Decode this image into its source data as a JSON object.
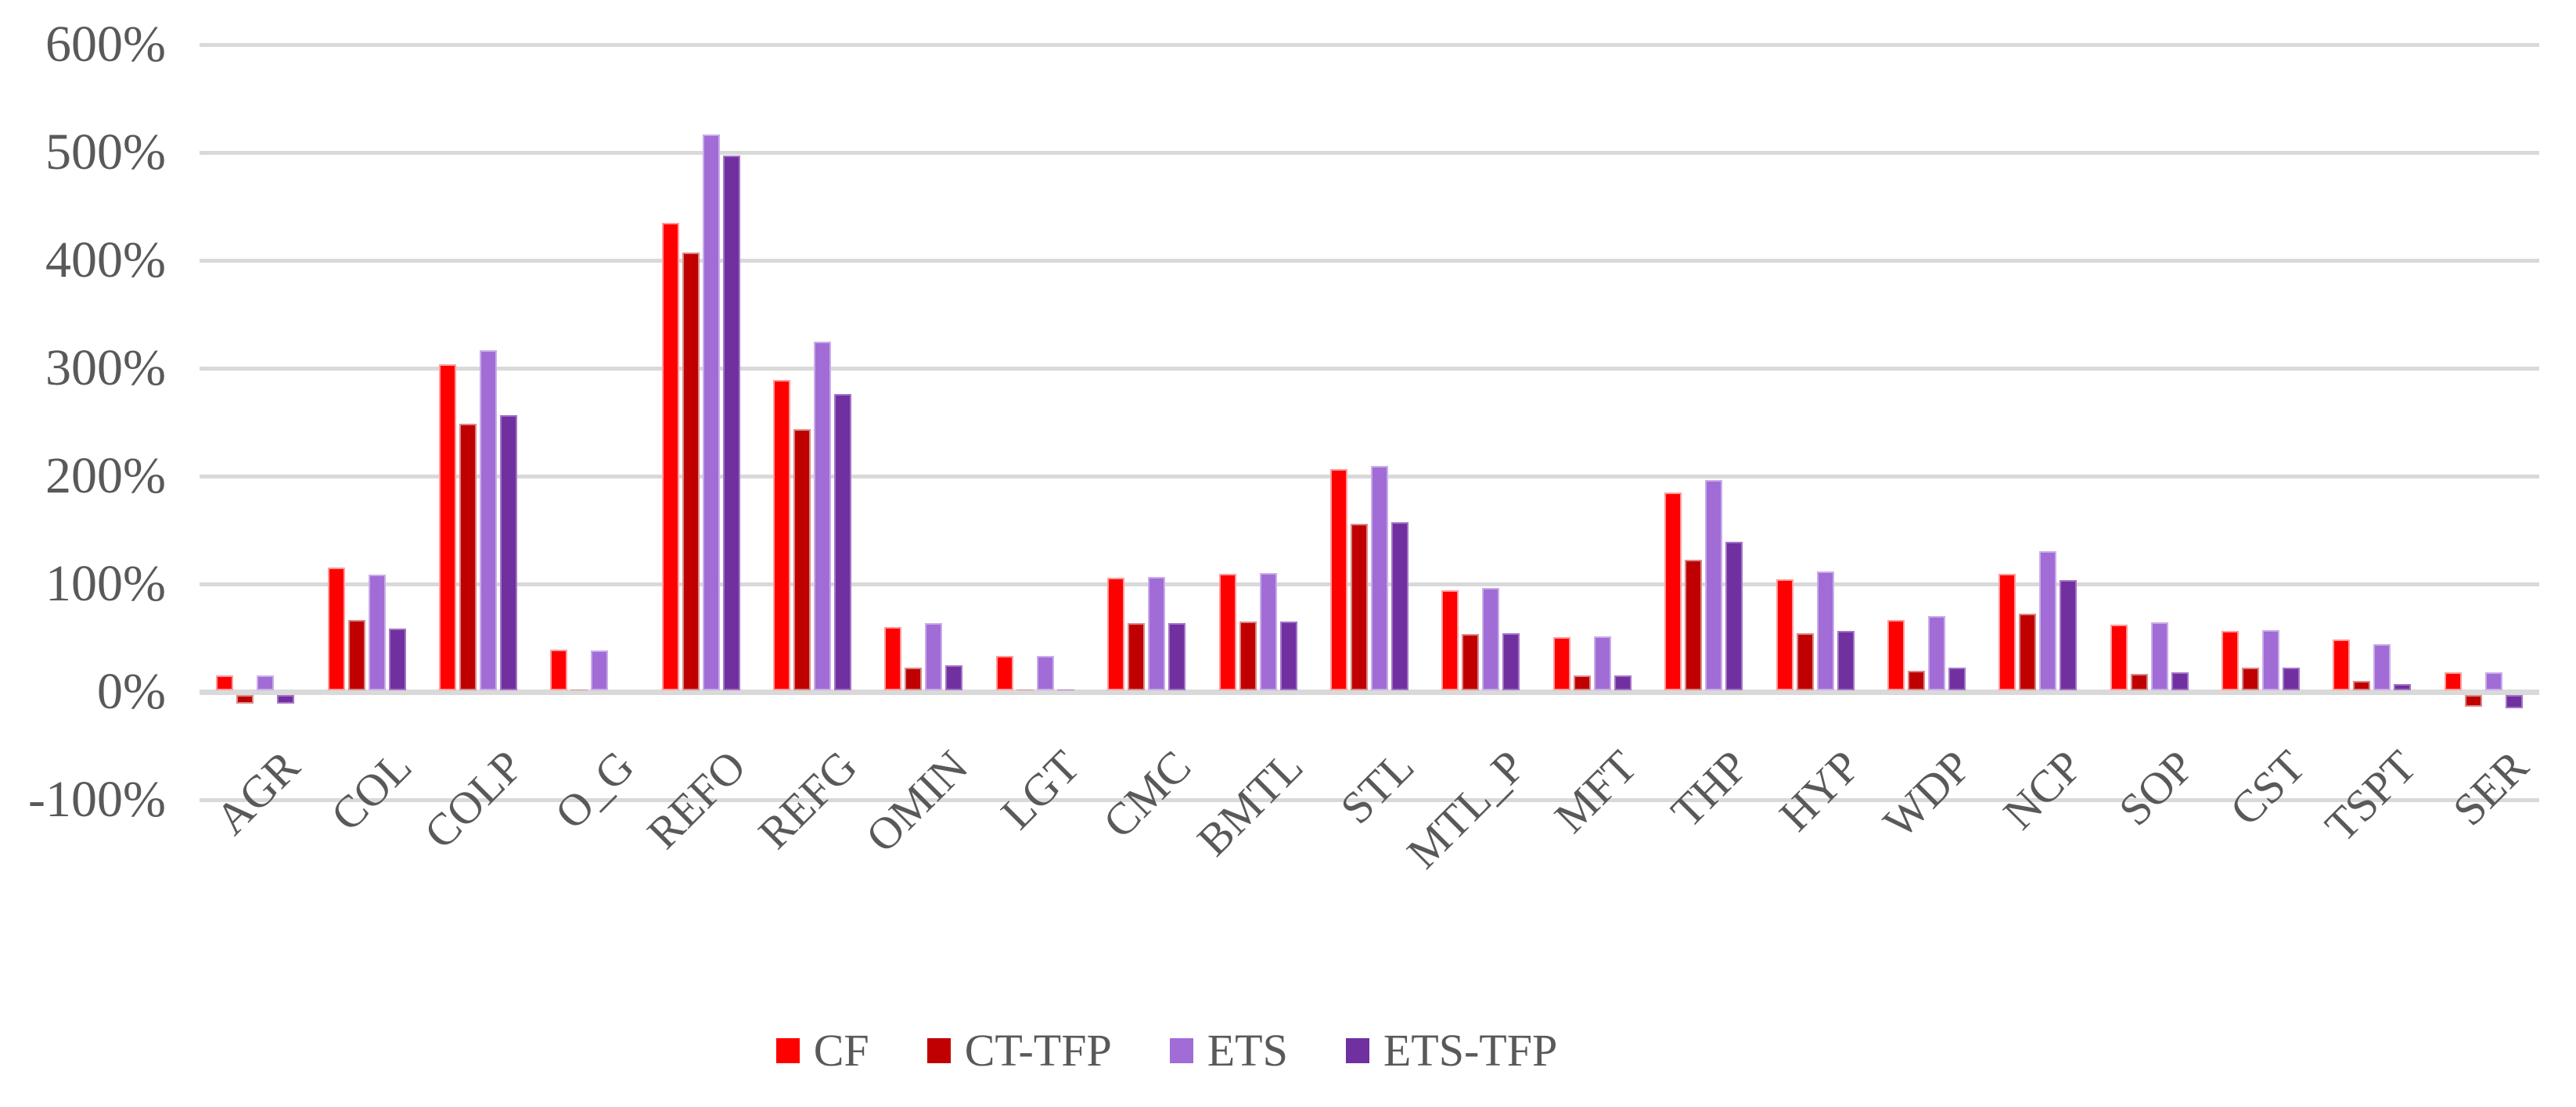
{
  "chart_data": {
    "type": "bar",
    "title": "",
    "xlabel": "",
    "ylabel": "",
    "ylim": [
      -100,
      600
    ],
    "grid": true,
    "gridline_color": "#D9D9D9",
    "axis_text_color": "#595959",
    "background_color": "#FFFFFF",
    "legend_position": "bottom",
    "y_ticks": [
      {
        "label": "600%",
        "value": 600
      },
      {
        "label": "500%",
        "value": 500
      },
      {
        "label": "400%",
        "value": 400
      },
      {
        "label": "300%",
        "value": 300
      },
      {
        "label": "200%",
        "value": 200
      },
      {
        "label": "100%",
        "value": 100
      },
      {
        "label": "0%",
        "value": 0
      },
      {
        "label": "-100%",
        "value": -100
      }
    ],
    "categories": [
      "AGR",
      "COL",
      "COLP",
      "O_G",
      "REFO",
      "REFG",
      "OMIN",
      "LGT",
      "CMC",
      "BMTL",
      "STL",
      "MTL_P",
      "MFT",
      "THP",
      "HYP",
      "WDP",
      "NCP",
      "SOP",
      "CST",
      "TSPT",
      "SER"
    ],
    "series": [
      {
        "name": "CF",
        "color": "#FF0000",
        "edge_color": "#FF9B9B",
        "values": [
          14,
          114,
          302,
          38,
          433,
          288,
          59,
          32,
          104,
          108,
          205,
          93,
          49,
          183,
          103,
          65,
          108,
          61,
          55,
          47,
          17
        ]
      },
      {
        "name": "CT-TFP",
        "color": "#C00000",
        "edge_color": "#D98A8A",
        "values": [
          -8,
          65,
          247,
          1,
          406,
          242,
          21,
          1,
          62,
          64,
          154,
          52,
          14,
          121,
          53,
          18,
          71,
          15,
          21,
          9,
          -11
        ]
      },
      {
        "name": "ETS",
        "color": "#A16CD6",
        "edge_color": "#C9ADE9",
        "values": [
          14,
          107,
          315,
          37,
          515,
          323,
          62,
          32,
          105,
          109,
          208,
          95,
          50,
          195,
          110,
          69,
          129,
          63,
          56,
          43,
          17
        ]
      },
      {
        "name": "ETS-TFP",
        "color": "#7030A0",
        "edge_color": "#A574C7",
        "values": [
          -8,
          57,
          255,
          0,
          496,
          275,
          23,
          1,
          62,
          64,
          156,
          53,
          14,
          138,
          55,
          21,
          102,
          17,
          21,
          6,
          -12
        ]
      }
    ]
  }
}
